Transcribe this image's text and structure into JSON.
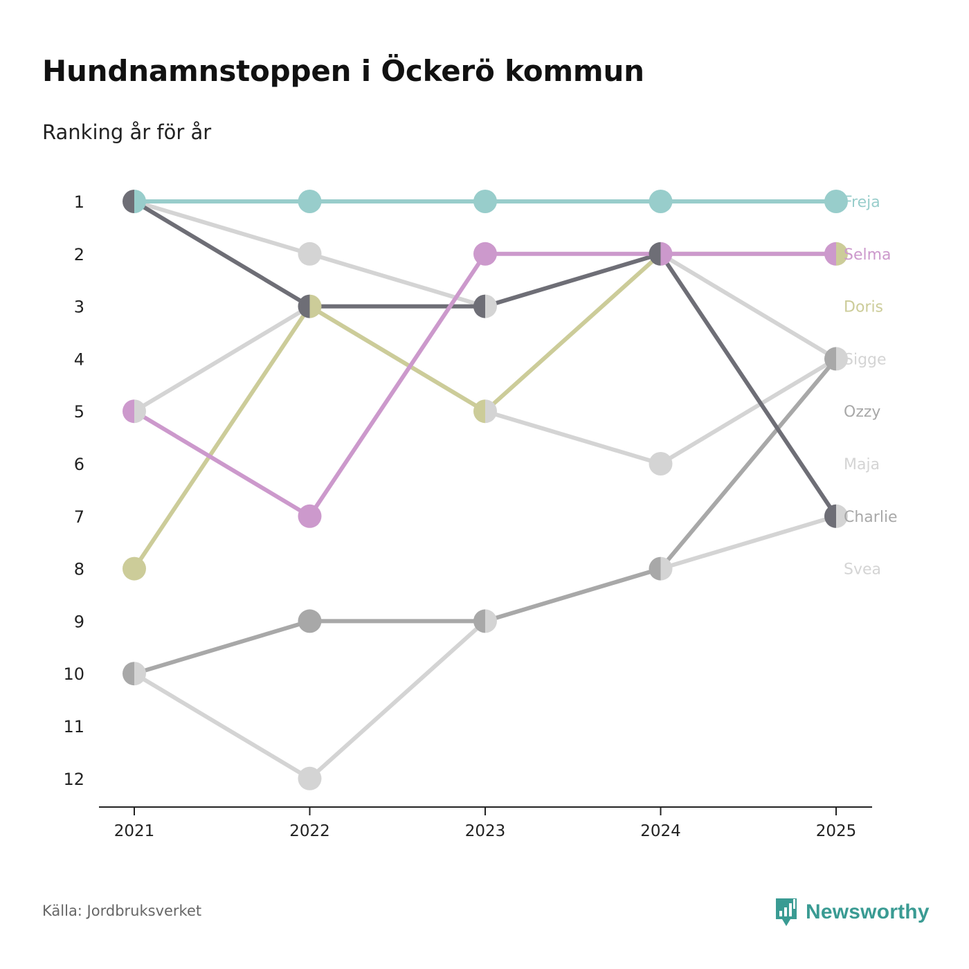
{
  "header": {
    "title": "Hundnamnstoppen i Öckerö kommun",
    "subtitle": "Ranking år för år"
  },
  "footer": {
    "source": "Källa: Jordbruksverket",
    "brand": "Newsworthy",
    "brand_icon": "newsworthy-logo-icon"
  },
  "colors": {
    "Freja": "#98cdcb",
    "Selma": "#cc99cc",
    "Doris": "#cccc99",
    "Sigge": "#d4d4d4",
    "Ozzy": "#a8a8a8",
    "Maja": "#d4d4d4",
    "Charlie": "#6e6e76",
    "Svea": "#d4d4d4",
    "axis": "#222222",
    "brand": "#3a9b93"
  },
  "chart_data": {
    "type": "line",
    "subtype": "bump-chart",
    "title": "Hundnamnstoppen i Öckerö kommun",
    "subtitle": "Ranking år för år",
    "categories": [
      "2021",
      "2022",
      "2023",
      "2024",
      "2025"
    ],
    "y_ticks": [
      "1",
      "2",
      "3",
      "4",
      "5",
      "6",
      "7",
      "8",
      "9",
      "10",
      "11",
      "12"
    ],
    "ylim": [
      1,
      12
    ],
    "y_inverted": true,
    "xlabel": "",
    "ylabel": "",
    "series": [
      {
        "name": "Freja",
        "values": [
          1,
          1,
          1,
          1,
          1
        ]
      },
      {
        "name": "Selma",
        "values": [
          5,
          7,
          2,
          2,
          2
        ]
      },
      {
        "name": "Doris",
        "values": [
          8,
          3,
          5,
          2,
          2
        ]
      },
      {
        "name": "Sigge",
        "values": [
          1,
          2,
          3,
          2,
          4
        ]
      },
      {
        "name": "Ozzy",
        "values": [
          10,
          9,
          9,
          8,
          4
        ]
      },
      {
        "name": "Maja",
        "values": [
          5,
          3,
          5,
          6,
          4
        ]
      },
      {
        "name": "Charlie",
        "values": [
          1,
          3,
          3,
          2,
          7
        ]
      },
      {
        "name": "Svea",
        "values": [
          10,
          12,
          9,
          8,
          7
        ]
      }
    ],
    "end_labels": [
      {
        "name": "Freja",
        "rank": 1
      },
      {
        "name": "Selma",
        "rank": 2
      },
      {
        "name": "Doris",
        "rank": 3
      },
      {
        "name": "Sigge",
        "rank": 4
      },
      {
        "name": "Ozzy",
        "rank": 5
      },
      {
        "name": "Maja",
        "rank": 6
      },
      {
        "name": "Charlie",
        "rank": 7
      },
      {
        "name": "Svea",
        "rank": 8
      }
    ],
    "label_colors": {
      "Freja": "#98cdcb",
      "Selma": "#cc99cc",
      "Doris": "#cccc99",
      "Sigge": "#d4d4d4",
      "Ozzy": "#a8a8a8",
      "Maja": "#d4d4d4",
      "Charlie": "#a8a8a8",
      "Svea": "#d4d4d4"
    },
    "draw_order": [
      "Svea",
      "Maja",
      "Sigge",
      "Ozzy",
      "Charlie",
      "Doris",
      "Selma",
      "Freja"
    ],
    "marker_order": [
      "Svea",
      "Maja",
      "Sigge",
      "Ozzy",
      "Doris",
      "Selma",
      "Freja",
      "Charlie"
    ]
  }
}
